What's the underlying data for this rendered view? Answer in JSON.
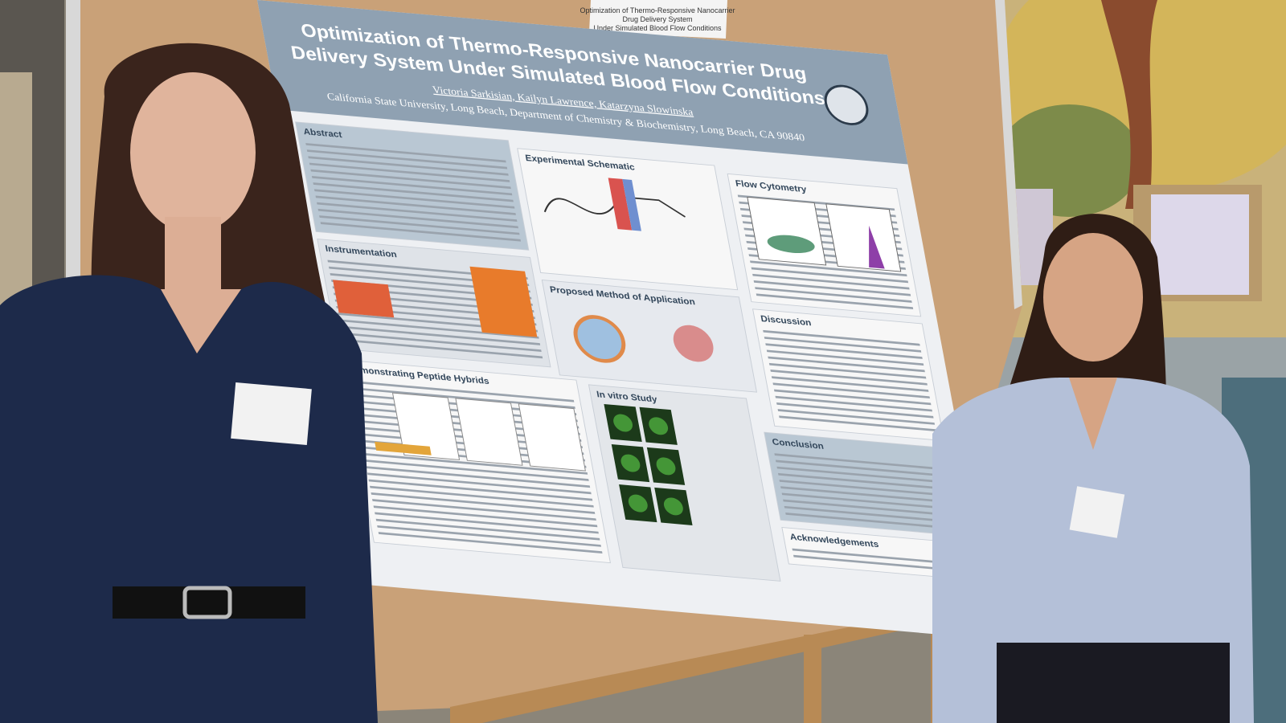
{
  "sign": {
    "line1": "Optimization of Thermo-Responsive Nanocarrier",
    "line2": "Drug Delivery System",
    "line3": "Under Simulated Blood Flow Conditions"
  },
  "poster": {
    "title_line1": "Optimization of Thermo-Responsive Nanocarrier Drug",
    "title_line2": "Delivery System Under Simulated Blood Flow Conditions",
    "authors": "Victoria Sarkisian, Kailyn Lawrence, Katarzyna Slowinska",
    "affiliation": "California State University, Long Beach, Department of Chemistry & Biochemistry, Long Beach, CA 90840",
    "sections": [
      "Abstract",
      "Experimental Schematic",
      "Flow Cytometry",
      "Instrumentation",
      "Proposed Method of Application",
      "Discussion",
      "Demonstrating Peptide Hybrids",
      "In vitro Study",
      "Conclusion",
      "Acknowledgements"
    ]
  }
}
